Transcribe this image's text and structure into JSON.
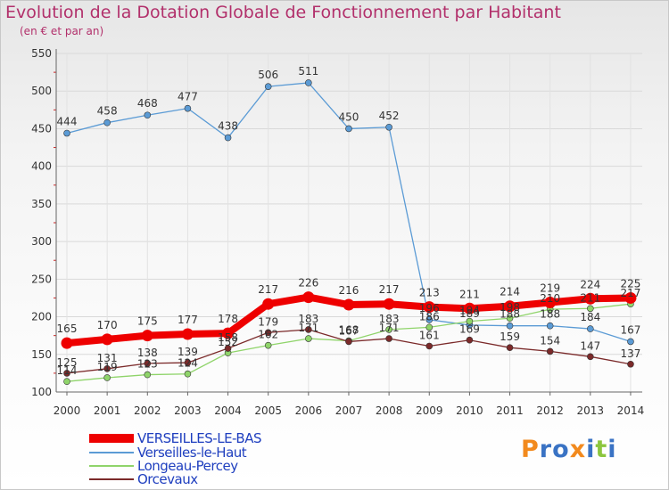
{
  "title": "Evolution de la Dotation Globale de Fonctionnement par Habitant",
  "subtitle": "(en € et par an)",
  "colors": {
    "title": "#b2306b",
    "axis_text": "#333333",
    "legend_text": "#1f3fbf"
  },
  "logo": {
    "letters": [
      "P",
      "r",
      "o",
      "x",
      "i",
      "t",
      "i"
    ],
    "colors": [
      "#f28a1e",
      "#3a73c4",
      "#3a73c4",
      "#f28a1e",
      "#3a73c4",
      "#8cc63f",
      "#3a73c4"
    ]
  },
  "chart_data": {
    "type": "line",
    "title": "Evolution de la Dotation Globale de Fonctionnement par Habitant",
    "ylabel": "(en € et par an)",
    "xlabel": "",
    "categories": [
      "2000",
      "2001",
      "2002",
      "2003",
      "2004",
      "2005",
      "2006",
      "2007",
      "2008",
      "2009",
      "2010",
      "2011",
      "2012",
      "2013",
      "2014"
    ],
    "ylim": [
      100,
      550
    ],
    "yticks": [
      100,
      150,
      200,
      250,
      300,
      350,
      400,
      450,
      500,
      550
    ],
    "grid": true,
    "legend_position": "bottom-left",
    "series": [
      {
        "name": "VERSEILLES-LE-BAS",
        "color": "#ee0000",
        "values": [
          165,
          170,
          175,
          177,
          178,
          217,
          226,
          216,
          217,
          213,
          211,
          214,
          219,
          224,
          225
        ],
        "labels": [
          "165",
          "170",
          "175",
          "177",
          "178",
          "217",
          "226",
          "216",
          "217",
          "213",
          "211",
          "214",
          "219",
          "224",
          "225"
        ],
        "emphasis": true
      },
      {
        "name": "Verseilles-le-Haut",
        "color": "#5b9bd5",
        "values": [
          444,
          458,
          468,
          477,
          438,
          506,
          511,
          450,
          452,
          196,
          189,
          188,
          188,
          184,
          167
        ],
        "labels": [
          "444",
          "458",
          "468",
          "477",
          "438",
          "506",
          "511",
          "450",
          "452",
          "196",
          "189",
          "188",
          "188",
          "184",
          "167"
        ]
      },
      {
        "name": "Longeau-Percey",
        "color": "#8fd46a",
        "values": [
          114,
          119,
          123,
          124,
          152,
          162,
          171,
          168,
          183,
          186,
          194,
          198,
          210,
          211,
          217
        ],
        "labels": [
          "114",
          "119",
          "123",
          "124",
          "152",
          "162",
          "171",
          "168",
          "183",
          "186",
          "194",
          "198",
          "210",
          "211",
          "217"
        ]
      },
      {
        "name": "Orcevaux",
        "color": "#7b2a2a",
        "values": [
          125,
          131,
          138,
          139,
          158,
          179,
          183,
          167,
          171,
          161,
          169,
          159,
          154,
          147,
          137
        ],
        "labels": [
          "125",
          "131",
          "138",
          "139",
          "158",
          "179",
          "183",
          "167",
          "171",
          "161",
          "169",
          "159",
          "154",
          "147",
          "137"
        ]
      }
    ]
  }
}
